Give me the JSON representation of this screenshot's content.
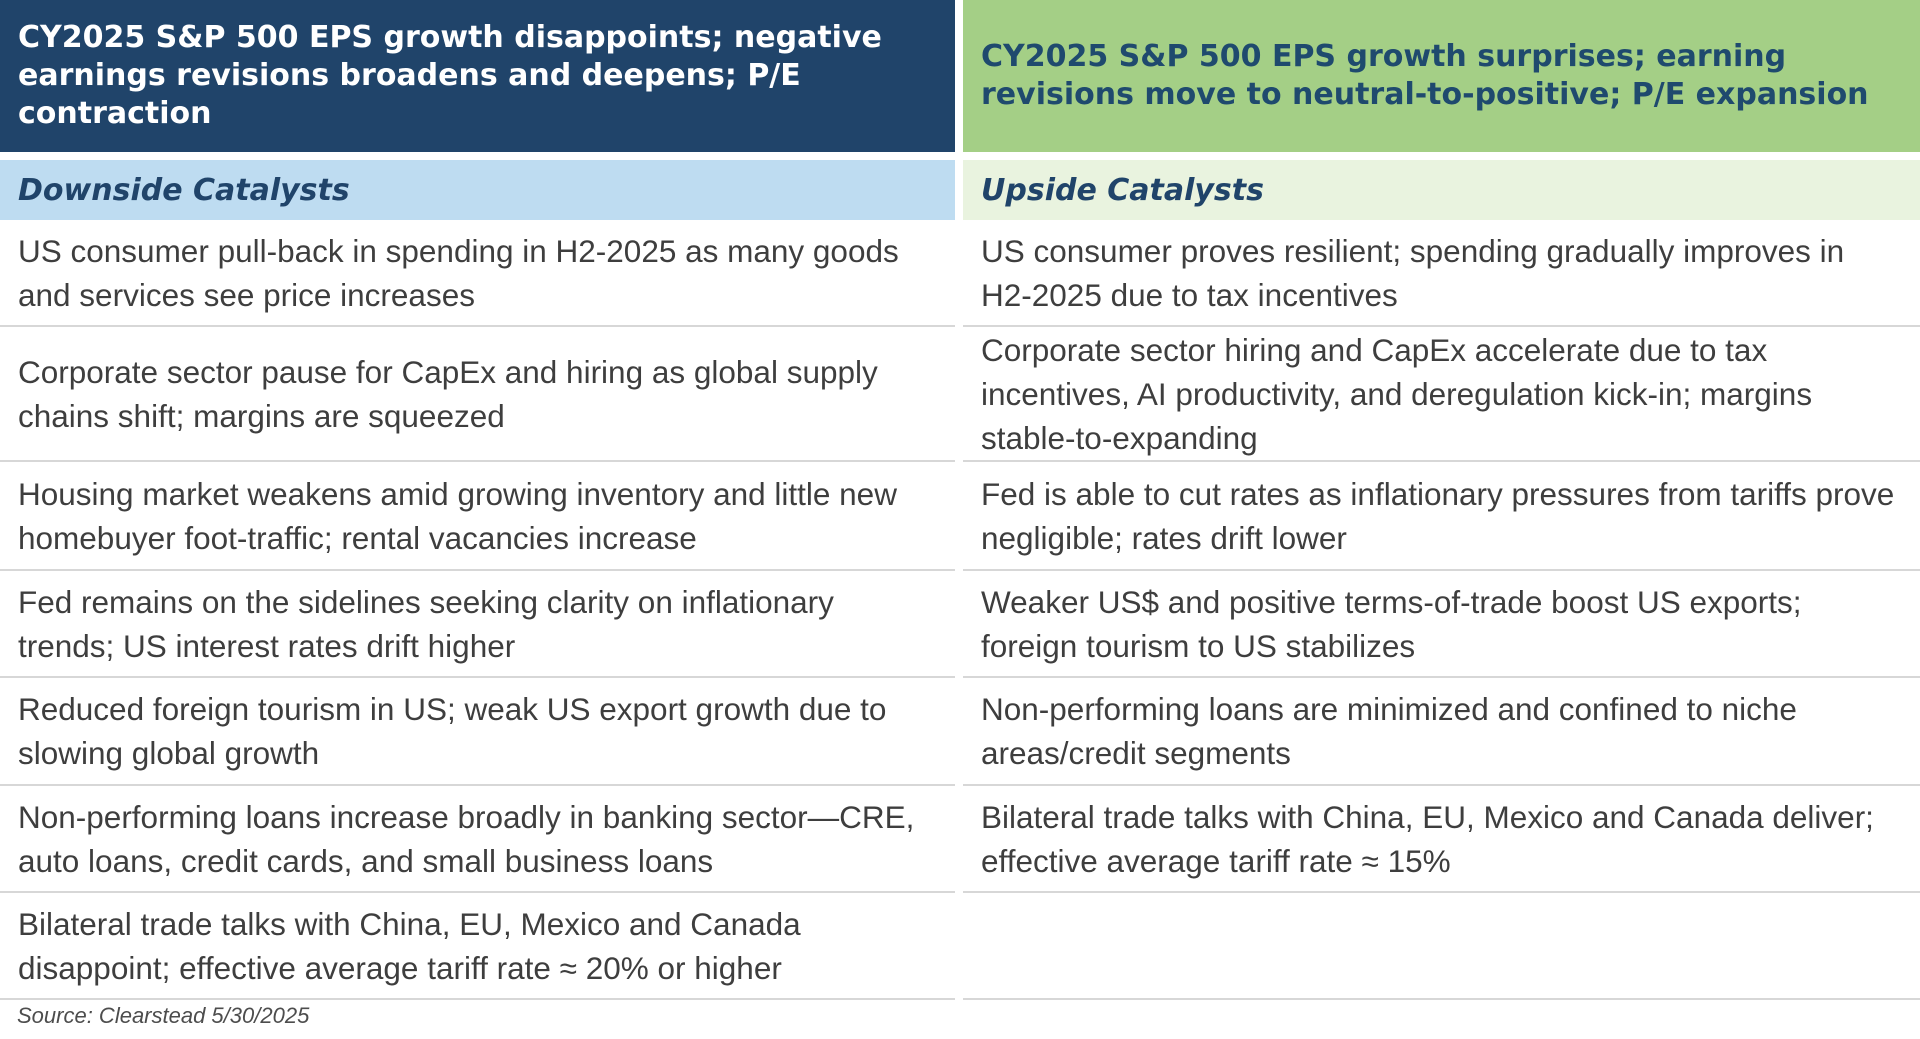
{
  "header": {
    "left_title": "CY2025 S&P 500 EPS growth disappoints; negative earnings revisions broadens and deepens; P/E contraction",
    "right_title": "CY2025 S&P 500 EPS growth surprises; earning revisions move to neutral-to-positive; P/E expansion"
  },
  "subheader": {
    "left": "Downside Catalysts",
    "right": "Upside Catalysts"
  },
  "rows": [
    {
      "downside": "US consumer pull-back in spending in H2-2025 as many goods and services see price increases",
      "upside": "US consumer proves resilient; spending gradually improves in H2-2025 due to tax incentives"
    },
    {
      "downside": "Corporate sector pause for CapEx and hiring as global supply chains shift; margins are squeezed",
      "upside": "Corporate sector hiring and CapEx accelerate due to tax incentives, AI productivity, and deregulation kick-in; margins stable-to-expanding"
    },
    {
      "downside": "Housing market weakens amid growing inventory and little new homebuyer foot-traffic; rental vacancies increase",
      "upside": "Fed is able to cut rates as inflationary pressures from tariffs prove negligible; rates drift lower"
    },
    {
      "downside": "Fed remains on the sidelines seeking clarity on inflationary trends; US interest rates drift higher",
      "upside": "Weaker US$ and positive terms-of-trade boost US exports; foreign tourism to US stabilizes"
    },
    {
      "downside": "Reduced foreign tourism in US; weak US export growth due to slowing global growth",
      "upside": "Non-performing loans are minimized and confined to niche areas/credit segments"
    },
    {
      "downside": "Non-performing loans increase broadly in banking sector—CRE, auto loans, credit cards, and small business loans",
      "upside": "Bilateral trade talks with China, EU, Mexico and Canada deliver; effective average tariff rate ≈ 15%"
    },
    {
      "downside": "Bilateral trade talks with China, EU, Mexico and Canada disappoint; effective average tariff rate ≈ 20% or higher",
      "upside": ""
    }
  ],
  "source": "Source: Clearstead 5/30/2025",
  "colors": {
    "left_header_bg": "#20446a",
    "right_header_bg": "#a4cf86",
    "left_sub_bg": "#bedcf1",
    "right_sub_bg": "#e9f3df"
  }
}
